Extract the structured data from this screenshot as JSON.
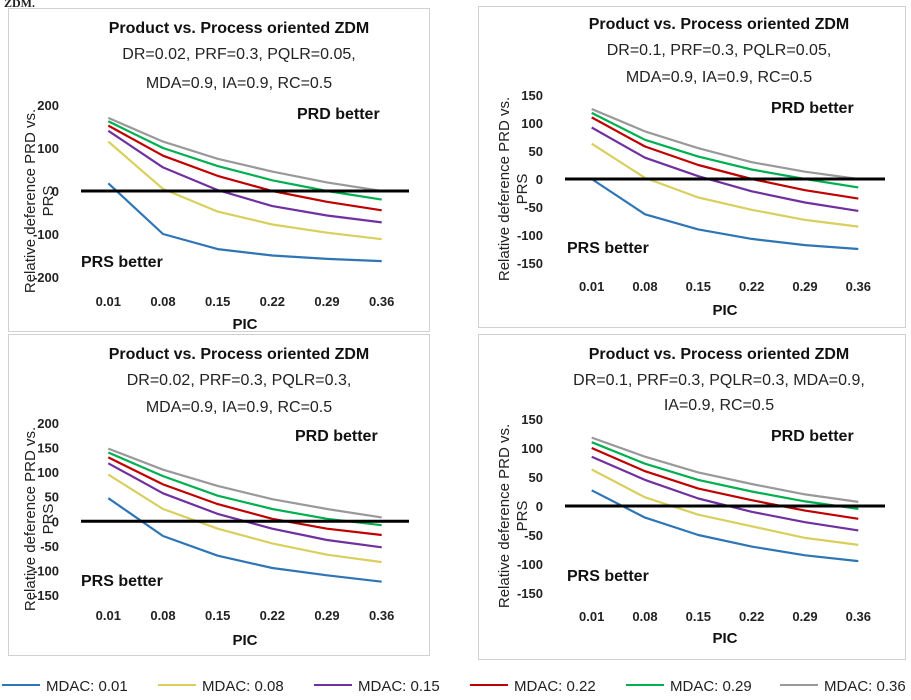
{
  "page": {
    "top_fragment": "ZDM."
  },
  "colors": {
    "MDAC: 0.01": "#2e75b6",
    "MDAC: 0.08": "#d9cf5c",
    "MDAC: 0.15": "#7030a0",
    "MDAC: 0.22": "#c00000",
    "MDAC: 0.29": "#00b050",
    "MDAC: 0.36": "#999999",
    "zero_line": "#000000"
  },
  "legend": [
    {
      "label": "MDAC: 0.01"
    },
    {
      "label": "MDAC: 0.08"
    },
    {
      "label": "MDAC: 0.15"
    },
    {
      "label": "MDAC: 0.22"
    },
    {
      "label": "MDAC: 0.29"
    },
    {
      "label": "MDAC: 0.36"
    }
  ],
  "chart_data": [
    {
      "type": "line",
      "title": "Product vs. Process oriented ZDM",
      "subtitle_lines": [
        "DR=0.02, PRF=0.3, PQLR=0.05,",
        "MDA=0.9, IA=0.9, RC=0.5"
      ],
      "xlabel": "PIC",
      "ylabel": "Relative deference PRD vs. PRS",
      "categories": [
        "0.01",
        "0.08",
        "0.15",
        "0.22",
        "0.29",
        "0.36"
      ],
      "ylim": [
        -200,
        200
      ],
      "yticks": [
        -200,
        -100,
        0,
        100,
        200
      ],
      "annotations": [
        "PRD better",
        "PRS better"
      ],
      "grid": false,
      "legend_position": "bottom",
      "series": [
        {
          "name": "MDAC: 0.01",
          "values": [
            18,
            -100,
            -135,
            -150,
            -158,
            -163
          ]
        },
        {
          "name": "MDAC: 0.08",
          "values": [
            115,
            5,
            -48,
            -78,
            -97,
            -112
          ]
        },
        {
          "name": "MDAC: 0.15",
          "values": [
            140,
            55,
            2,
            -35,
            -57,
            -73
          ]
        },
        {
          "name": "MDAC: 0.22",
          "values": [
            152,
            82,
            35,
            0,
            -25,
            -45
          ]
        },
        {
          "name": "MDAC: 0.29",
          "values": [
            162,
            100,
            58,
            25,
            0,
            -20
          ]
        },
        {
          "name": "MDAC: 0.36",
          "values": [
            170,
            115,
            75,
            45,
            20,
            0
          ]
        }
      ]
    },
    {
      "type": "line",
      "title": "Product vs. Process oriented ZDM",
      "subtitle_lines": [
        "DR=0.1, PRF=0.3, PQLR=0.05,",
        "MDA=0.9, IA=0.9, RC=0.5"
      ],
      "xlabel": "PIC",
      "ylabel": "Relative deference PRD vs. PRS",
      "categories": [
        "0.01",
        "0.08",
        "0.15",
        "0.22",
        "0.29",
        "0.36"
      ],
      "ylim": [
        -150,
        150
      ],
      "yticks": [
        -150,
        -100,
        -50,
        0,
        50,
        100,
        150
      ],
      "annotations": [
        "PRD better",
        "PRS better"
      ],
      "grid": false,
      "legend_position": "bottom",
      "series": [
        {
          "name": "MDAC: 0.01",
          "values": [
            0,
            -63,
            -90,
            -107,
            -118,
            -125
          ]
        },
        {
          "name": "MDAC: 0.08",
          "values": [
            63,
            2,
            -33,
            -55,
            -73,
            -85
          ]
        },
        {
          "name": "MDAC: 0.15",
          "values": [
            92,
            38,
            5,
            -22,
            -42,
            -57
          ]
        },
        {
          "name": "MDAC: 0.22",
          "values": [
            110,
            58,
            25,
            0,
            -20,
            -35
          ]
        },
        {
          "name": "MDAC: 0.29",
          "values": [
            118,
            70,
            40,
            17,
            0,
            -15
          ]
        },
        {
          "name": "MDAC: 0.36",
          "values": [
            125,
            85,
            55,
            30,
            13,
            0
          ]
        }
      ]
    },
    {
      "type": "line",
      "title": "Product vs. Process oriented ZDM",
      "subtitle_lines": [
        "DR=0.02, PRF=0.3, PQLR=0.3,",
        "MDA=0.9, IA=0.9, RC=0.5"
      ],
      "xlabel": "PIC",
      "ylabel": "Relative deference PRD vs. PRS",
      "categories": [
        "0.01",
        "0.08",
        "0.15",
        "0.22",
        "0.29",
        "0.36"
      ],
      "ylim": [
        -150,
        200
      ],
      "yticks": [
        -150,
        -100,
        -50,
        0,
        50,
        100,
        150,
        200
      ],
      "annotations": [
        "PRD better",
        "PRS better"
      ],
      "grid": false,
      "legend_position": "bottom",
      "series": [
        {
          "name": "MDAC: 0.01",
          "values": [
            47,
            -30,
            -70,
            -95,
            -110,
            -123
          ]
        },
        {
          "name": "MDAC: 0.08",
          "values": [
            95,
            25,
            -15,
            -45,
            -68,
            -83
          ]
        },
        {
          "name": "MDAC: 0.15",
          "values": [
            118,
            57,
            15,
            -15,
            -38,
            -53
          ]
        },
        {
          "name": "MDAC: 0.22",
          "values": [
            130,
            75,
            35,
            5,
            -15,
            -28
          ]
        },
        {
          "name": "MDAC: 0.29",
          "values": [
            140,
            92,
            52,
            25,
            5,
            -8
          ]
        },
        {
          "name": "MDAC: 0.36",
          "values": [
            148,
            105,
            72,
            45,
            25,
            8
          ]
        }
      ]
    },
    {
      "type": "line",
      "title": "Product vs. Process oriented ZDM",
      "subtitle_lines": [
        "DR=0.1, PRF=0.3, PQLR=0.3, MDA=0.9,",
        "IA=0.9, RC=0.5"
      ],
      "xlabel": "PIC",
      "ylabel": "Relative deference PRD vs. PRS",
      "categories": [
        "0.01",
        "0.08",
        "0.15",
        "0.22",
        "0.29",
        "0.36"
      ],
      "ylim": [
        -150,
        150
      ],
      "yticks": [
        -150,
        -100,
        -50,
        0,
        50,
        100,
        150
      ],
      "annotations": [
        "PRD better",
        "PRS better"
      ],
      "grid": false,
      "legend_position": "bottom",
      "series": [
        {
          "name": "MDAC: 0.01",
          "values": [
            27,
            -20,
            -50,
            -70,
            -85,
            -95
          ]
        },
        {
          "name": "MDAC: 0.08",
          "values": [
            63,
            15,
            -15,
            -35,
            -55,
            -67
          ]
        },
        {
          "name": "MDAC: 0.15",
          "values": [
            85,
            45,
            13,
            -10,
            -28,
            -42
          ]
        },
        {
          "name": "MDAC: 0.22",
          "values": [
            100,
            60,
            30,
            10,
            -8,
            -22
          ]
        },
        {
          "name": "MDAC: 0.29",
          "values": [
            110,
            73,
            45,
            25,
            8,
            -5
          ]
        },
        {
          "name": "MDAC: 0.36",
          "values": [
            118,
            85,
            58,
            38,
            20,
            7
          ]
        }
      ]
    }
  ]
}
